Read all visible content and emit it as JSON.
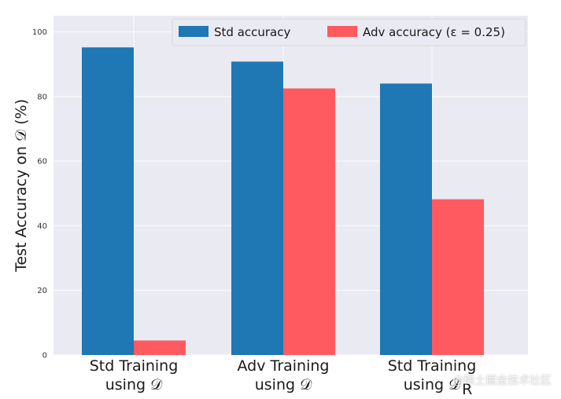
{
  "chart_data": {
    "type": "bar",
    "categories": [
      [
        "Std Training",
        "using 𝒟"
      ],
      [
        "Adv Training",
        "using 𝒟"
      ],
      [
        "Std Training",
        "using 𝒟",
        "R"
      ]
    ],
    "series": [
      {
        "name": "Std accuracy",
        "values": [
          95.2,
          90.8,
          84.0
        ],
        "color": "#1f77b4"
      },
      {
        "name": "Adv accuracy (ε = 0.25)",
        "values": [
          4.5,
          82.5,
          48.2
        ],
        "color": "#ff5a5f"
      }
    ],
    "ylabel": "Test Accuracy on 𝒟 (%)",
    "ylim": [
      0,
      105
    ],
    "yticks": [
      0,
      20,
      40,
      60,
      80,
      100
    ],
    "grid": true,
    "legend_position": "top-right",
    "background": "#eaeaf2"
  },
  "watermark": "@稀土掘金技术社区"
}
